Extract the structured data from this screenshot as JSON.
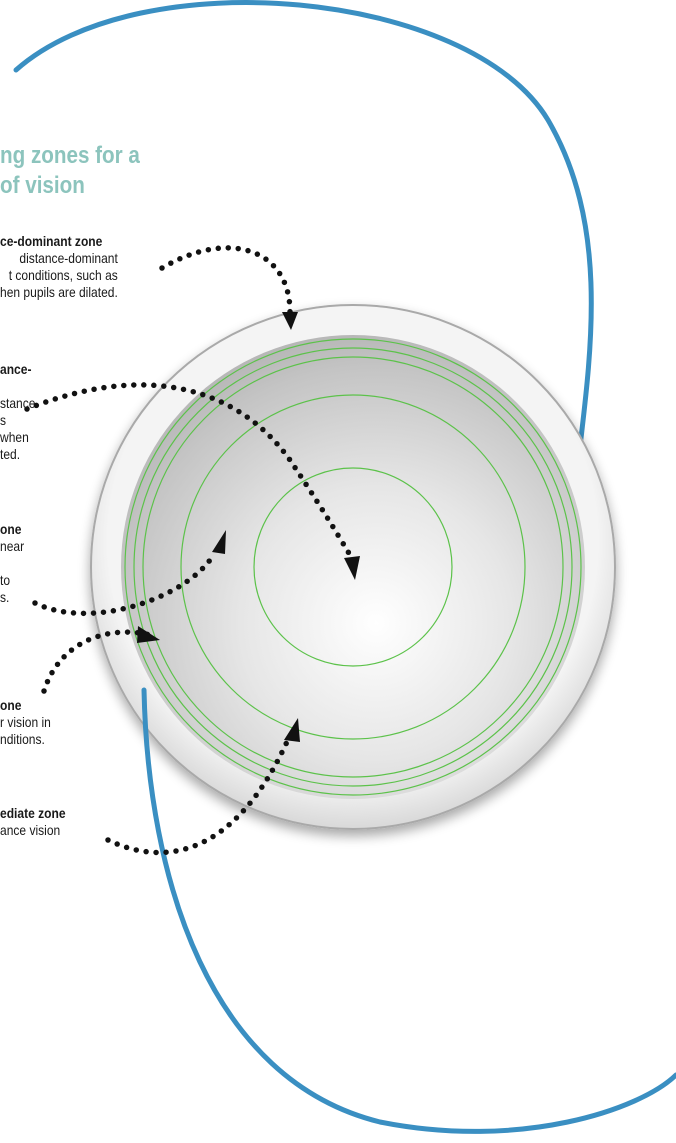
{
  "title": {
    "line1": "ng zones for a",
    "line2": "of vision"
  },
  "labels": [
    {
      "heading": "ce-dominant zone",
      "body": "distance-dominant\nt conditions, such as\nhen pupils are dilated."
    },
    {
      "heading": "ance-",
      "body": "\nstance\ns\nwhen\nted."
    },
    {
      "heading": "one",
      "body": "near\n\nto\ns."
    },
    {
      "heading": "one",
      "body": "r vision in\nnditions."
    },
    {
      "heading": "ediate zone",
      "body": "ance vision"
    }
  ],
  "colors": {
    "title": "#8cc4bd",
    "haptic": "#3a8fc2",
    "rings": "#5cc24a",
    "arrows": "#111111",
    "lens_edge": "#a9a9a9"
  }
}
